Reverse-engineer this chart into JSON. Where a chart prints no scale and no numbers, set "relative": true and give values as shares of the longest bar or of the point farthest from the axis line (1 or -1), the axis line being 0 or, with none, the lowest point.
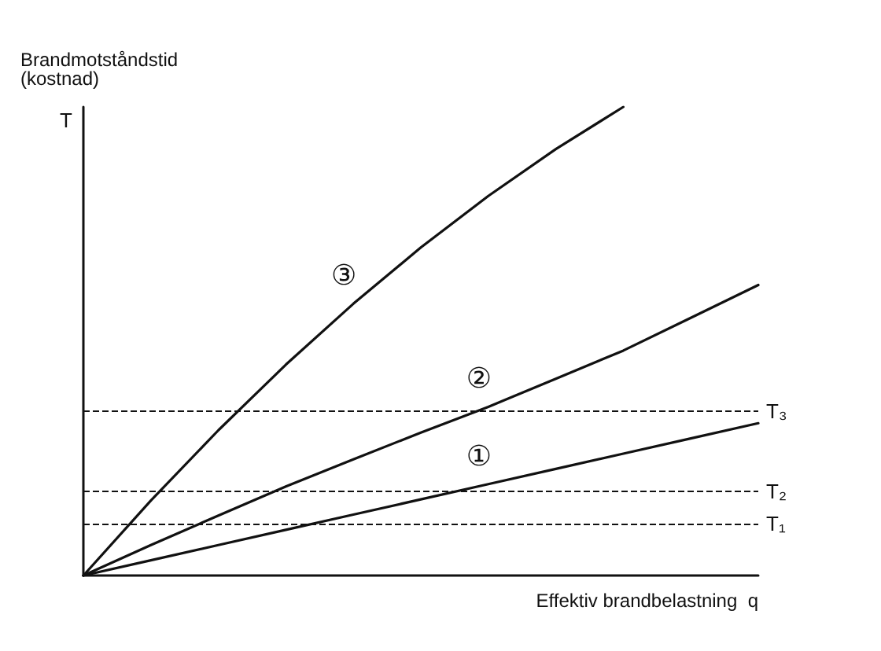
{
  "chart_data": {
    "type": "line",
    "relative": true,
    "ylabel": "Brandmotståndstid\n(kostnad)",
    "xlabel": "Effektiv brandbelastning  q",
    "annotations": [
      "T"
    ],
    "categories": [
      null,
      null,
      null,
      null,
      null,
      null,
      null,
      null,
      null,
      null,
      null
    ],
    "series": [
      {
        "name": "①",
        "color": "#111111",
        "values": [
          0,
          0.0325,
          0.065,
          0.0975,
          0.13,
          0.1625,
          0.195,
          0.2275,
          0.26,
          0.2925,
          0.325
        ]
      },
      {
        "name": "②",
        "color": "#111111",
        "values": [
          0,
          0.065,
          0.128,
          0.19,
          0.248,
          0.305,
          0.36,
          0.42,
          0.48,
          0.55,
          0.62
        ]
      },
      {
        "name": "③",
        "color": "#111111",
        "values": [
          0,
          0.16,
          0.31,
          0.45,
          0.58,
          0.7,
          0.81,
          0.91,
          1,
          null,
          null
        ]
      }
    ],
    "ref_lines": [
      {
        "axis": "y",
        "value": 0.106,
        "label": "T₁",
        "line_style": "dashed"
      },
      {
        "axis": "y",
        "value": 0.181,
        "label": "T₂",
        "line_style": "dashed"
      },
      {
        "axis": "y",
        "value": 0.353,
        "label": "T₃",
        "line_style": "dashed"
      }
    ],
    "grid": false,
    "legend": false,
    "marker": "none",
    "line_style": "solid"
  }
}
